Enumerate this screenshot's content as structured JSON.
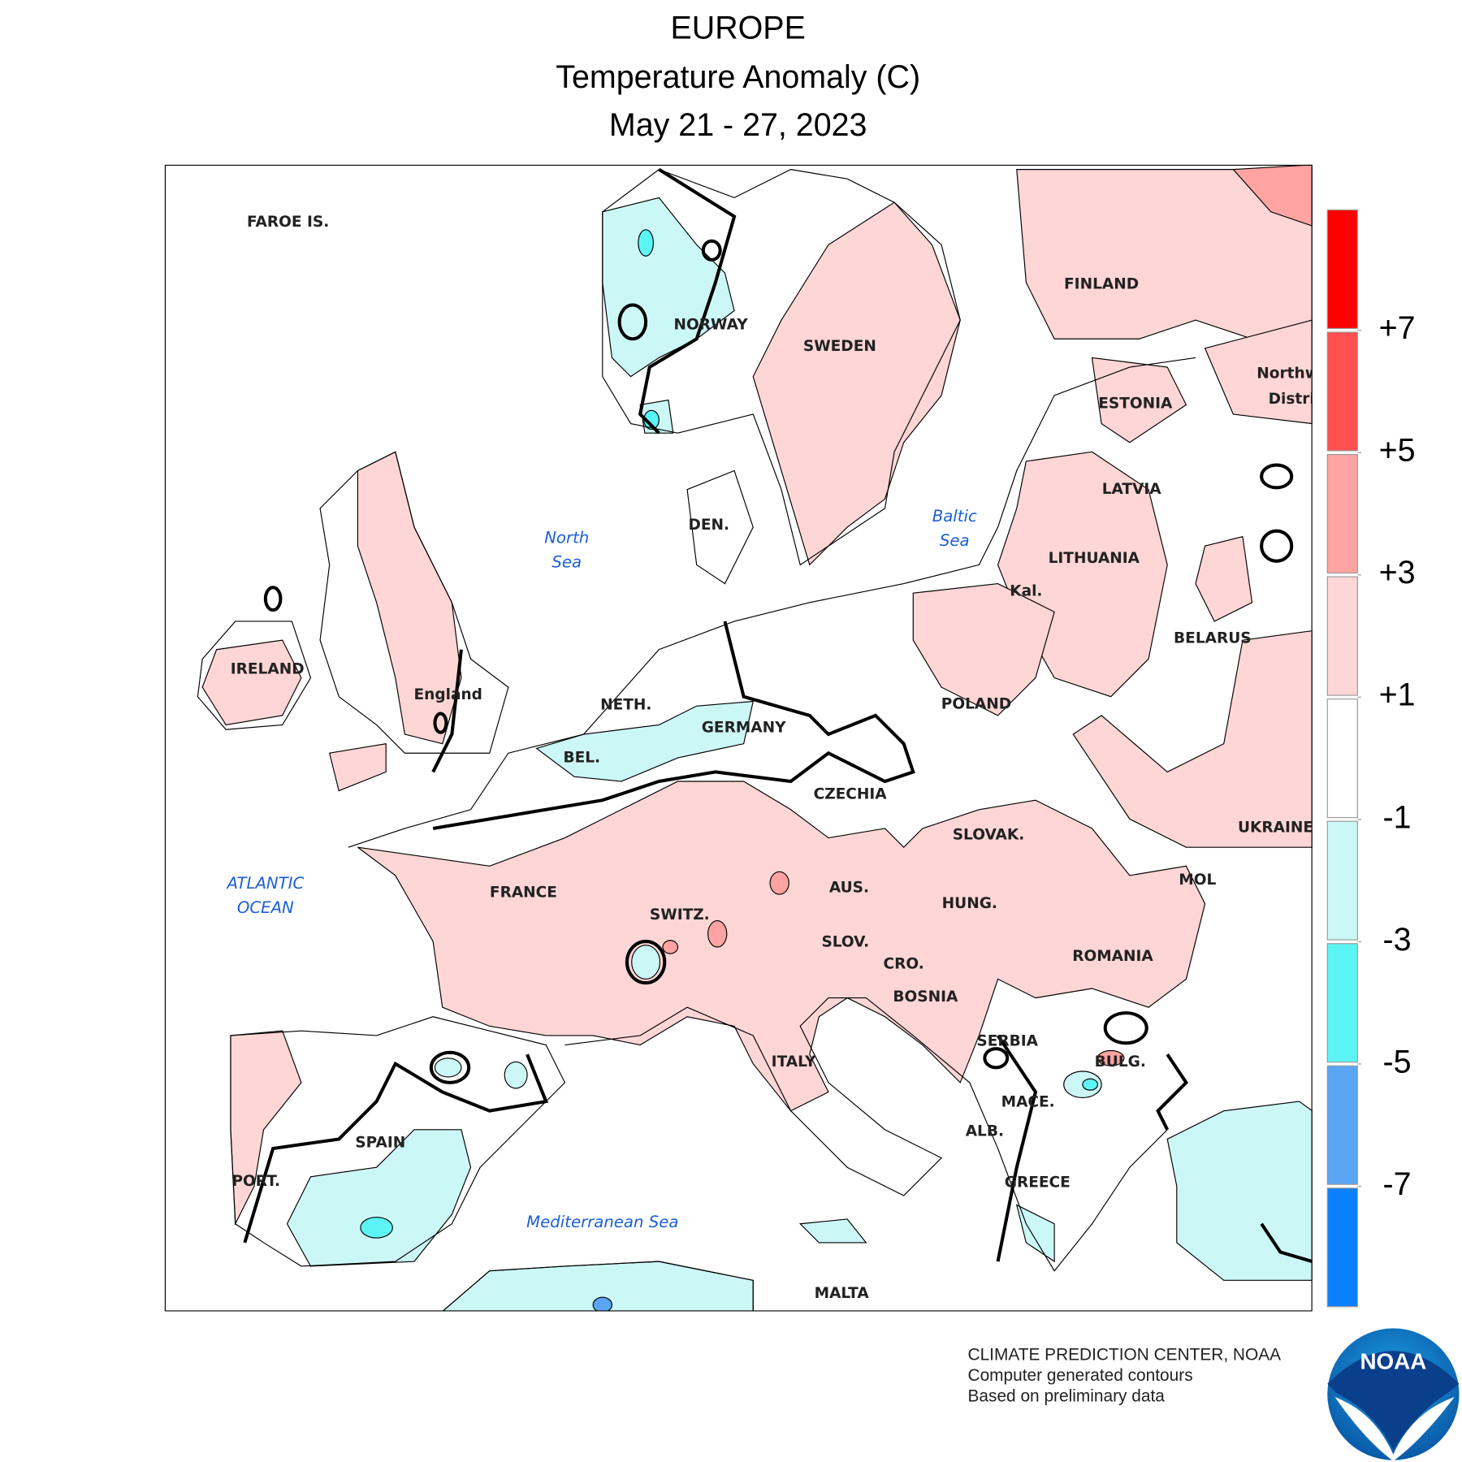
{
  "title": "EUROPE",
  "subtitle": "Temperature Anomaly (C)",
  "date": "May 21 - 27, 2023",
  "map": {
    "country_labels": [
      "FAROE IS.",
      "NORWAY",
      "SWEDEN",
      "FINLAND",
      "ESTONIA",
      "LATVIA",
      "LITHUANIA",
      "Kal.",
      "BELARUS",
      "Northw",
      "Distri",
      "IRELAND",
      "England",
      "DEN.",
      "NETH.",
      "GERMANY",
      "BEL.",
      "POLAND",
      "CZECHIA",
      "UKRAINE",
      "SLOVAK.",
      "FRANCE",
      "AUS.",
      "HUNG.",
      "MOL",
      "SWITZ.",
      "SLOV.",
      "CRO.",
      "ROMANIA",
      "BOSNIA",
      "SERBIA",
      "ITALY",
      "BULG.",
      "MACE.",
      "ALB.",
      "SPAIN",
      "PORT.",
      "GREECE",
      "MALTA"
    ],
    "sea_labels": [
      [
        "North",
        "Sea"
      ],
      [
        "Baltic",
        "Sea"
      ],
      [
        "ATLANTIC",
        "OCEAN"
      ],
      [
        "Mediterranean Sea"
      ]
    ]
  },
  "colorbar": {
    "colors": [
      "#ff0000",
      "#ff4f4f",
      "#ffa3a3",
      "#ffd6d6",
      "#ffffff",
      "#ccf7f7",
      "#5cf5f5",
      "#5aa6f5",
      "#0a80ff"
    ],
    "ticks": [
      {
        "value": 7,
        "label": "+7"
      },
      {
        "value": 5,
        "label": "+5"
      },
      {
        "value": 3,
        "label": "+3"
      },
      {
        "value": 1,
        "label": "+1"
      },
      -1,
      -3,
      -5,
      -7
    ]
  },
  "credits": [
    "CLIMATE PREDICTION CENTER, NOAA",
    "Computer generated contours",
    "Based on preliminary data"
  ],
  "logo": "NOAA"
}
